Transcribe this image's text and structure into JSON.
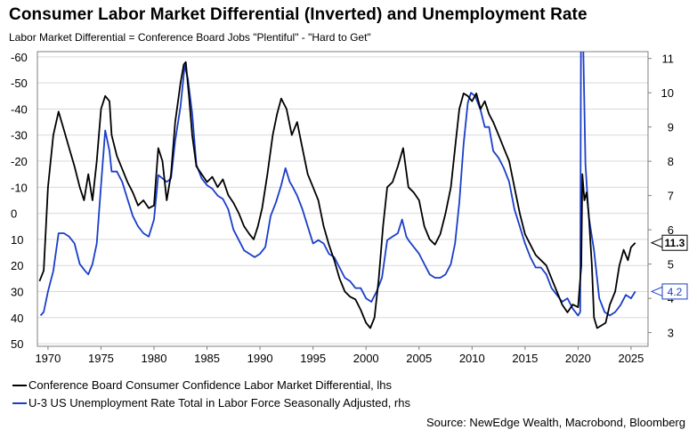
{
  "title": "Consumer Labor Market Differential (Inverted) and Unemployment Rate",
  "subtitle": "Labor Market Differential = Conference Board Jobs \"Plentiful\" - \"Hard to Get\"",
  "source": "Source: NewEdge Wealth, Macrobond, Bloomberg",
  "colors": {
    "differential": "#000000",
    "unemployment": "#1a3ec8",
    "grid": "#d9d9d9",
    "axis": "#7f7f7f"
  },
  "chart_data": {
    "type": "line",
    "x_ticks": [
      "1970",
      "1975",
      "1980",
      "1985",
      "1990",
      "1995",
      "2000",
      "2005",
      "2010",
      "2015",
      "2020",
      "2025"
    ],
    "xlim": [
      1969,
      2026.6
    ],
    "left_axis": {
      "ticks": [
        "-60",
        "-50",
        "-40",
        "-30",
        "-20",
        "-10",
        "0",
        "10",
        "20",
        "30",
        "40",
        "50"
      ],
      "ylim": [
        -62,
        51
      ],
      "inverted": true
    },
    "right_axis": {
      "ticks": [
        "3",
        "4",
        "5",
        "6",
        "7",
        "8",
        "9",
        "10",
        "11"
      ],
      "ylim": [
        2.6,
        11.2
      ]
    },
    "grid": true,
    "legend_placement": "bottom-left",
    "series": [
      {
        "name": "Conference Board Consumer Confidence Labor Market Differential, lhs",
        "axis": "left",
        "last_value_label": "11.3",
        "points": [
          [
            1969.2,
            26
          ],
          [
            1969.6,
            22
          ],
          [
            1970,
            -10
          ],
          [
            1970.5,
            -30
          ],
          [
            1971,
            -39
          ],
          [
            1971.5,
            -32
          ],
          [
            1972,
            -25
          ],
          [
            1972.5,
            -18
          ],
          [
            1973,
            -10
          ],
          [
            1973.4,
            -5
          ],
          [
            1973.8,
            -15
          ],
          [
            1974.2,
            -5
          ],
          [
            1974.6,
            -20
          ],
          [
            1975,
            -40
          ],
          [
            1975.4,
            -45
          ],
          [
            1975.8,
            -43
          ],
          [
            1976,
            -30
          ],
          [
            1976.5,
            -22
          ],
          [
            1977,
            -17
          ],
          [
            1977.5,
            -12
          ],
          [
            1978,
            -8
          ],
          [
            1978.5,
            -3
          ],
          [
            1979,
            -5
          ],
          [
            1979.5,
            -2
          ],
          [
            1980,
            -3
          ],
          [
            1980.4,
            -25
          ],
          [
            1980.8,
            -20
          ],
          [
            1981.2,
            -5
          ],
          [
            1981.6,
            -15
          ],
          [
            1982,
            -35
          ],
          [
            1982.5,
            -50
          ],
          [
            1982.8,
            -57
          ],
          [
            1983,
            -58
          ],
          [
            1983.3,
            -45
          ],
          [
            1983.6,
            -30
          ],
          [
            1984,
            -18
          ],
          [
            1984.5,
            -15
          ],
          [
            1985,
            -12
          ],
          [
            1985.5,
            -14
          ],
          [
            1986,
            -10
          ],
          [
            1986.5,
            -13
          ],
          [
            1987,
            -7
          ],
          [
            1987.5,
            -4
          ],
          [
            1988,
            0
          ],
          [
            1988.5,
            5
          ],
          [
            1989,
            8
          ],
          [
            1989.4,
            10
          ],
          [
            1989.8,
            5
          ],
          [
            1990.2,
            -2
          ],
          [
            1990.7,
            -15
          ],
          [
            1991.2,
            -30
          ],
          [
            1991.6,
            -38
          ],
          [
            1992,
            -44
          ],
          [
            1992.5,
            -40
          ],
          [
            1993,
            -30
          ],
          [
            1993.5,
            -35
          ],
          [
            1994,
            -25
          ],
          [
            1994.5,
            -15
          ],
          [
            1995,
            -10
          ],
          [
            1995.5,
            -5
          ],
          [
            1996,
            5
          ],
          [
            1996.5,
            12
          ],
          [
            1997,
            18
          ],
          [
            1997.5,
            25
          ],
          [
            1998,
            30
          ],
          [
            1998.5,
            32
          ],
          [
            1999,
            33
          ],
          [
            1999.5,
            37
          ],
          [
            2000,
            42
          ],
          [
            2000.4,
            44
          ],
          [
            2000.8,
            40
          ],
          [
            2001.2,
            25
          ],
          [
            2001.6,
            5
          ],
          [
            2002,
            -10
          ],
          [
            2002.5,
            -12
          ],
          [
            2003,
            -18
          ],
          [
            2003.5,
            -25
          ],
          [
            2004,
            -10
          ],
          [
            2004.5,
            -8
          ],
          [
            2005,
            -5
          ],
          [
            2005.5,
            5
          ],
          [
            2006,
            10
          ],
          [
            2006.5,
            12
          ],
          [
            2007,
            8
          ],
          [
            2007.5,
            0
          ],
          [
            2008,
            -10
          ],
          [
            2008.4,
            -25
          ],
          [
            2008.8,
            -40
          ],
          [
            2009.2,
            -46
          ],
          [
            2009.6,
            -45
          ],
          [
            2010,
            -43
          ],
          [
            2010.4,
            -46
          ],
          [
            2010.8,
            -40
          ],
          [
            2011.2,
            -43
          ],
          [
            2011.6,
            -38
          ],
          [
            2012,
            -35
          ],
          [
            2012.5,
            -30
          ],
          [
            2013,
            -25
          ],
          [
            2013.5,
            -20
          ],
          [
            2014,
            -10
          ],
          [
            2014.5,
            0
          ],
          [
            2015,
            8
          ],
          [
            2015.5,
            12
          ],
          [
            2016,
            16
          ],
          [
            2016.5,
            18
          ],
          [
            2017,
            20
          ],
          [
            2017.5,
            25
          ],
          [
            2018,
            30
          ],
          [
            2018.5,
            35
          ],
          [
            2019,
            38
          ],
          [
            2019.5,
            35
          ],
          [
            2020,
            36
          ],
          [
            2020.3,
            20
          ],
          [
            2020.4,
            -15
          ],
          [
            2020.6,
            -5
          ],
          [
            2020.8,
            -8
          ],
          [
            2021,
            0
          ],
          [
            2021.3,
            20
          ],
          [
            2021.5,
            40
          ],
          [
            2021.8,
            44
          ],
          [
            2022.2,
            43
          ],
          [
            2022.6,
            42
          ],
          [
            2023,
            35
          ],
          [
            2023.5,
            30
          ],
          [
            2023.9,
            20
          ],
          [
            2024.3,
            14
          ],
          [
            2024.7,
            18
          ],
          [
            2025,
            13
          ],
          [
            2025.4,
            11.3
          ]
        ]
      },
      {
        "name": "U-3 US Unemployment Rate Total in Labor Force Seasonally Adjusted, rhs",
        "axis": "right",
        "last_value_label": "4.2",
        "points": [
          [
            1969.3,
            3.5
          ],
          [
            1969.6,
            3.6
          ],
          [
            1970,
            4.2
          ],
          [
            1970.5,
            4.8
          ],
          [
            1971,
            5.9
          ],
          [
            1971.5,
            5.9
          ],
          [
            1972,
            5.8
          ],
          [
            1972.5,
            5.6
          ],
          [
            1973,
            5.0
          ],
          [
            1973.5,
            4.8
          ],
          [
            1973.8,
            4.7
          ],
          [
            1974.2,
            5.0
          ],
          [
            1974.6,
            5.6
          ],
          [
            1975,
            7.3
          ],
          [
            1975.4,
            8.9
          ],
          [
            1975.8,
            8.3
          ],
          [
            1976,
            7.7
          ],
          [
            1976.5,
            7.7
          ],
          [
            1977,
            7.4
          ],
          [
            1977.5,
            6.9
          ],
          [
            1978,
            6.4
          ],
          [
            1978.5,
            6.1
          ],
          [
            1979,
            5.9
          ],
          [
            1979.5,
            5.8
          ],
          [
            1980,
            6.3
          ],
          [
            1980.4,
            7.6
          ],
          [
            1980.8,
            7.5
          ],
          [
            1981.2,
            7.4
          ],
          [
            1981.6,
            7.5
          ],
          [
            1982,
            8.6
          ],
          [
            1982.5,
            9.6
          ],
          [
            1982.9,
            10.8
          ],
          [
            1983.2,
            10.4
          ],
          [
            1983.6,
            9.4
          ],
          [
            1984,
            7.9
          ],
          [
            1984.5,
            7.5
          ],
          [
            1985,
            7.3
          ],
          [
            1985.5,
            7.2
          ],
          [
            1986,
            7.0
          ],
          [
            1986.5,
            6.9
          ],
          [
            1987,
            6.6
          ],
          [
            1987.5,
            6.0
          ],
          [
            1988,
            5.7
          ],
          [
            1988.5,
            5.4
          ],
          [
            1989,
            5.3
          ],
          [
            1989.5,
            5.2
          ],
          [
            1990,
            5.3
          ],
          [
            1990.5,
            5.5
          ],
          [
            1991,
            6.4
          ],
          [
            1991.5,
            6.8
          ],
          [
            1992,
            7.3
          ],
          [
            1992.4,
            7.8
          ],
          [
            1992.8,
            7.4
          ],
          [
            1993,
            7.3
          ],
          [
            1993.5,
            7.0
          ],
          [
            1994,
            6.6
          ],
          [
            1994.5,
            6.1
          ],
          [
            1995,
            5.6
          ],
          [
            1995.5,
            5.7
          ],
          [
            1996,
            5.6
          ],
          [
            1996.5,
            5.3
          ],
          [
            1997,
            5.2
          ],
          [
            1997.5,
            4.9
          ],
          [
            1998,
            4.6
          ],
          [
            1998.5,
            4.5
          ],
          [
            1999,
            4.3
          ],
          [
            1999.5,
            4.3
          ],
          [
            2000,
            4.0
          ],
          [
            2000.5,
            3.9
          ],
          [
            2001,
            4.2
          ],
          [
            2001.5,
            4.6
          ],
          [
            2002,
            5.7
          ],
          [
            2002.5,
            5.8
          ],
          [
            2003,
            5.9
          ],
          [
            2003.4,
            6.3
          ],
          [
            2003.8,
            5.8
          ],
          [
            2004,
            5.7
          ],
          [
            2004.5,
            5.5
          ],
          [
            2005,
            5.3
          ],
          [
            2005.5,
            5.0
          ],
          [
            2006,
            4.7
          ],
          [
            2006.5,
            4.6
          ],
          [
            2007,
            4.6
          ],
          [
            2007.5,
            4.7
          ],
          [
            2008,
            5.0
          ],
          [
            2008.4,
            5.6
          ],
          [
            2008.8,
            6.8
          ],
          [
            2009.2,
            8.5
          ],
          [
            2009.6,
            9.7
          ],
          [
            2009.9,
            10.0
          ],
          [
            2010.3,
            9.9
          ],
          [
            2010.8,
            9.5
          ],
          [
            2011.2,
            9.0
          ],
          [
            2011.6,
            9.0
          ],
          [
            2012,
            8.3
          ],
          [
            2012.5,
            8.1
          ],
          [
            2013,
            7.8
          ],
          [
            2013.5,
            7.4
          ],
          [
            2014,
            6.6
          ],
          [
            2014.5,
            6.1
          ],
          [
            2015,
            5.6
          ],
          [
            2015.5,
            5.2
          ],
          [
            2016,
            4.9
          ],
          [
            2016.5,
            4.9
          ],
          [
            2017,
            4.7
          ],
          [
            2017.5,
            4.3
          ],
          [
            2018,
            4.1
          ],
          [
            2018.5,
            3.9
          ],
          [
            2019,
            4.0
          ],
          [
            2019.5,
            3.7
          ],
          [
            2020,
            3.5
          ],
          [
            2020.2,
            3.6
          ],
          [
            2020.3,
            14.7
          ],
          [
            2020.5,
            11.1
          ],
          [
            2020.7,
            7.9
          ],
          [
            2021,
            6.4
          ],
          [
            2021.5,
            5.4
          ],
          [
            2022,
            4.0
          ],
          [
            2022.5,
            3.6
          ],
          [
            2023,
            3.5
          ],
          [
            2023.5,
            3.6
          ],
          [
            2024,
            3.8
          ],
          [
            2024.5,
            4.1
          ],
          [
            2025,
            4.0
          ],
          [
            2025.4,
            4.2
          ]
        ]
      }
    ]
  }
}
